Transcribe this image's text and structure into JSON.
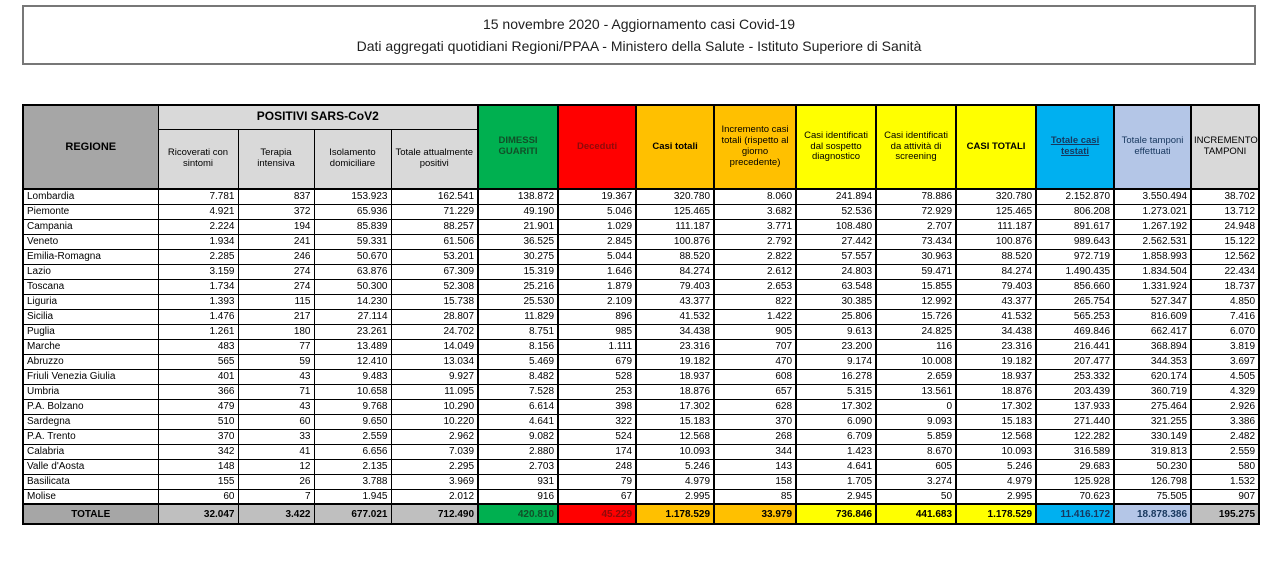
{
  "title": {
    "line1": "15 novembre 2020 - Aggiornamento casi Covid-19",
    "line2": "Dati aggregati quotidiani Regioni/PPAA - Ministero della Salute - Istituto Superiore di Sanità"
  },
  "colors": {
    "green": "#00B050",
    "red": "#FF0000",
    "orange": "#FFC000",
    "yellow": "#FFFF00",
    "cyan": "#00B0F0",
    "periwinkle": "#B4C6E7",
    "header_dark_gray": "#A6A6A6",
    "header_light_gray": "#D9D9D9",
    "total_gray": "#BFBFBF"
  },
  "chart_data": {
    "type": "table",
    "title": "15 novembre 2020 - Aggiornamento casi Covid-19",
    "subtitle": "Dati aggregati quotidiani Regioni/PPAA - Ministero della Salute - Istituto Superiore di Sanità",
    "region_header": "REGIONE",
    "group_header": "POSITIVI SARS-CoV2",
    "sub_headers": [
      "Ricoverati con sintomi",
      "Terapia intensiva",
      "Isolamento domiciliare",
      "Totale attualmente positivi"
    ],
    "value_headers": [
      "DIMESSI GUARITI",
      "Deceduti",
      "Casi totali",
      "Incremento casi totali (rispetto al giorno precedente)",
      "Casi identificati dal sospetto diagnostico",
      "Casi identificati da attività di screening",
      "CASI TOTALI",
      "Totale casi testati",
      "Totale tamponi effettuati",
      "INCREMENTO TAMPONI"
    ],
    "rows": [
      {
        "region": "Lombardia",
        "values": [
          "7.781",
          "837",
          "153.923",
          "162.541",
          "138.872",
          "19.367",
          "320.780",
          "8.060",
          "241.894",
          "78.886",
          "320.780",
          "2.152.870",
          "3.550.494",
          "38.702"
        ]
      },
      {
        "region": "Piemonte",
        "values": [
          "4.921",
          "372",
          "65.936",
          "71.229",
          "49.190",
          "5.046",
          "125.465",
          "3.682",
          "52.536",
          "72.929",
          "125.465",
          "806.208",
          "1.273.021",
          "13.712"
        ]
      },
      {
        "region": "Campania",
        "values": [
          "2.224",
          "194",
          "85.839",
          "88.257",
          "21.901",
          "1.029",
          "111.187",
          "3.771",
          "108.480",
          "2.707",
          "111.187",
          "891.617",
          "1.267.192",
          "24.948"
        ]
      },
      {
        "region": "Veneto",
        "values": [
          "1.934",
          "241",
          "59.331",
          "61.506",
          "36.525",
          "2.845",
          "100.876",
          "2.792",
          "27.442",
          "73.434",
          "100.876",
          "989.643",
          "2.562.531",
          "15.122"
        ]
      },
      {
        "region": "Emilia-Romagna",
        "values": [
          "2.285",
          "246",
          "50.670",
          "53.201",
          "30.275",
          "5.044",
          "88.520",
          "2.822",
          "57.557",
          "30.963",
          "88.520",
          "972.719",
          "1.858.993",
          "12.562"
        ]
      },
      {
        "region": "Lazio",
        "values": [
          "3.159",
          "274",
          "63.876",
          "67.309",
          "15.319",
          "1.646",
          "84.274",
          "2.612",
          "24.803",
          "59.471",
          "84.274",
          "1.490.435",
          "1.834.504",
          "22.434"
        ]
      },
      {
        "region": "Toscana",
        "values": [
          "1.734",
          "274",
          "50.300",
          "52.308",
          "25.216",
          "1.879",
          "79.403",
          "2.653",
          "63.548",
          "15.855",
          "79.403",
          "856.660",
          "1.331.924",
          "18.737"
        ]
      },
      {
        "region": "Liguria",
        "values": [
          "1.393",
          "115",
          "14.230",
          "15.738",
          "25.530",
          "2.109",
          "43.377",
          "822",
          "30.385",
          "12.992",
          "43.377",
          "265.754",
          "527.347",
          "4.850"
        ]
      },
      {
        "region": "Sicilia",
        "values": [
          "1.476",
          "217",
          "27.114",
          "28.807",
          "11.829",
          "896",
          "41.532",
          "1.422",
          "25.806",
          "15.726",
          "41.532",
          "565.253",
          "816.609",
          "7.416"
        ]
      },
      {
        "region": "Puglia",
        "values": [
          "1.261",
          "180",
          "23.261",
          "24.702",
          "8.751",
          "985",
          "34.438",
          "905",
          "9.613",
          "24.825",
          "34.438",
          "469.846",
          "662.417",
          "6.070"
        ]
      },
      {
        "region": "Marche",
        "values": [
          "483",
          "77",
          "13.489",
          "14.049",
          "8.156",
          "1.111",
          "23.316",
          "707",
          "23.200",
          "116",
          "23.316",
          "216.441",
          "368.894",
          "3.819"
        ]
      },
      {
        "region": "Abruzzo",
        "values": [
          "565",
          "59",
          "12.410",
          "13.034",
          "5.469",
          "679",
          "19.182",
          "470",
          "9.174",
          "10.008",
          "19.182",
          "207.477",
          "344.353",
          "3.697"
        ]
      },
      {
        "region": "Friuli Venezia Giulia",
        "values": [
          "401",
          "43",
          "9.483",
          "9.927",
          "8.482",
          "528",
          "18.937",
          "608",
          "16.278",
          "2.659",
          "18.937",
          "253.332",
          "620.174",
          "4.505"
        ]
      },
      {
        "region": "Umbria",
        "values": [
          "366",
          "71",
          "10.658",
          "11.095",
          "7.528",
          "253",
          "18.876",
          "657",
          "5.315",
          "13.561",
          "18.876",
          "203.439",
          "360.719",
          "4.329"
        ]
      },
      {
        "region": "P.A. Bolzano",
        "values": [
          "479",
          "43",
          "9.768",
          "10.290",
          "6.614",
          "398",
          "17.302",
          "628",
          "17.302",
          "0",
          "17.302",
          "137.933",
          "275.464",
          "2.926"
        ]
      },
      {
        "region": "Sardegna",
        "values": [
          "510",
          "60",
          "9.650",
          "10.220",
          "4.641",
          "322",
          "15.183",
          "370",
          "6.090",
          "9.093",
          "15.183",
          "271.440",
          "321.255",
          "3.386"
        ]
      },
      {
        "region": "P.A. Trento",
        "values": [
          "370",
          "33",
          "2.559",
          "2.962",
          "9.082",
          "524",
          "12.568",
          "268",
          "6.709",
          "5.859",
          "12.568",
          "122.282",
          "330.149",
          "2.482"
        ]
      },
      {
        "region": "Calabria",
        "values": [
          "342",
          "41",
          "6.656",
          "7.039",
          "2.880",
          "174",
          "10.093",
          "344",
          "1.423",
          "8.670",
          "10.093",
          "316.589",
          "319.813",
          "2.559"
        ]
      },
      {
        "region": "Valle d'Aosta",
        "values": [
          "148",
          "12",
          "2.135",
          "2.295",
          "2.703",
          "248",
          "5.246",
          "143",
          "4.641",
          "605",
          "5.246",
          "29.683",
          "50.230",
          "580"
        ]
      },
      {
        "region": "Basilicata",
        "values": [
          "155",
          "26",
          "3.788",
          "3.969",
          "931",
          "79",
          "4.979",
          "158",
          "1.705",
          "3.274",
          "4.979",
          "125.928",
          "126.798",
          "1.532"
        ]
      },
      {
        "region": "Molise",
        "values": [
          "60",
          "7",
          "1.945",
          "2.012",
          "916",
          "67",
          "2.995",
          "85",
          "2.945",
          "50",
          "2.995",
          "70.623",
          "75.505",
          "907"
        ]
      }
    ],
    "total": {
      "label": "TOTALE",
      "values": [
        "32.047",
        "3.422",
        "677.021",
        "712.490",
        "420.810",
        "45.229",
        "1.178.529",
        "33.979",
        "736.846",
        "441.683",
        "1.178.529",
        "11.416.172",
        "18.878.386",
        "195.275"
      ]
    }
  }
}
